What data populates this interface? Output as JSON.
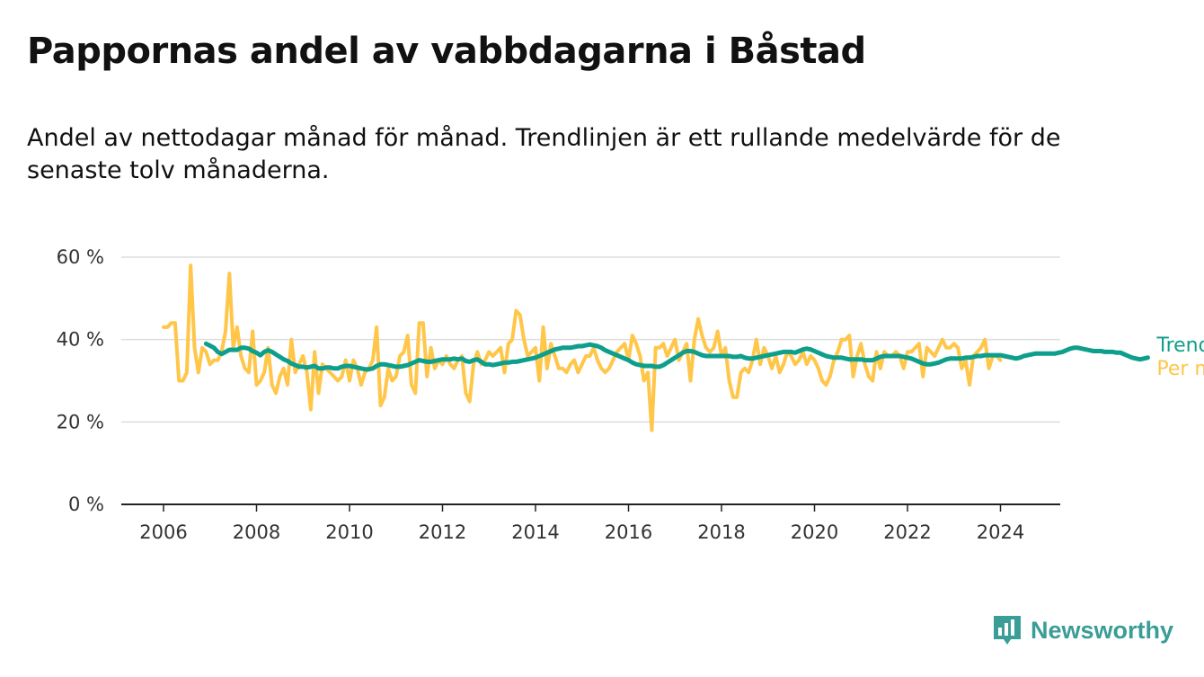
{
  "title": "Pappornas andel av vabbdagarna i Båstad",
  "subtitle": "Andel av nettodagar månad för månad. Trendlinjen är ett rullande medelvärde för de senaste tolv månaderna.",
  "brand": {
    "name": "Newsworthy",
    "icon": "newsworthy-logo-icon"
  },
  "colors": {
    "monthly": "#ffc649",
    "trend": "#0e9f8c",
    "grid": "#dddddd",
    "axis": "#222222"
  },
  "chart_data": {
    "type": "line",
    "title": "Pappornas andel av vabbdagarna i Båstad",
    "xlabel": "",
    "ylabel": "",
    "ylim": [
      0,
      60
    ],
    "yticks": [
      0,
      20,
      40,
      60
    ],
    "ytick_labels": [
      "0 %",
      "20 %",
      "40 %",
      "60 %"
    ],
    "xlim": [
      2006,
      2024.5
    ],
    "xticks": [
      2006,
      2008,
      2010,
      2012,
      2014,
      2016,
      2018,
      2020,
      2022,
      2024
    ],
    "xtick_labels": [
      "2006",
      "2008",
      "2010",
      "2012",
      "2014",
      "2016",
      "2018",
      "2020",
      "2022",
      "2024"
    ],
    "grid": "horizontal",
    "legend": "right",
    "series": [
      {
        "name": "Per månad",
        "color": "#ffc649",
        "x_start": 2006.0,
        "x_step": 0.0833333,
        "values": [
          43,
          43,
          44,
          44,
          30,
          30,
          32,
          58,
          38,
          32,
          38,
          37,
          34,
          35,
          35,
          37,
          42,
          56,
          38,
          43,
          36,
          33,
          32,
          42,
          29,
          30,
          32,
          38,
          29,
          27,
          31,
          33,
          29,
          40,
          32,
          34,
          36,
          32,
          23,
          37,
          27,
          34,
          33,
          32,
          31,
          30,
          31,
          35,
          30,
          35,
          33,
          29,
          32,
          33,
          35,
          43,
          24,
          26,
          33,
          30,
          31,
          36,
          37,
          41,
          29,
          27,
          44,
          44,
          31,
          38,
          33,
          35,
          34,
          36,
          34,
          33,
          35,
          36,
          27,
          25,
          34,
          37,
          34,
          35,
          37,
          36,
          37,
          38,
          32,
          39,
          40,
          47,
          46,
          40,
          36,
          37,
          38,
          30,
          43,
          33,
          39,
          36,
          33,
          33,
          32,
          34,
          35,
          32,
          34,
          36,
          36,
          38,
          35,
          33,
          32,
          33,
          35,
          37,
          38,
          39,
          35,
          41,
          39,
          36,
          30,
          32,
          18,
          38,
          38,
          39,
          36,
          38,
          40,
          35,
          37,
          39,
          30,
          40,
          45,
          41,
          38,
          37,
          38,
          42,
          36,
          38,
          30,
          26,
          26,
          32,
          33,
          32,
          35,
          40,
          34,
          38,
          36,
          33,
          36,
          32,
          34,
          37,
          36,
          34,
          35,
          37,
          34,
          36,
          35,
          33,
          30,
          29,
          31,
          35,
          37,
          40,
          40,
          41,
          31,
          36,
          39,
          34,
          31,
          30,
          37,
          33,
          37,
          36,
          36,
          37,
          36,
          33,
          37,
          37,
          38,
          39,
          31,
          38,
          37,
          36,
          38,
          40,
          38,
          38,
          39,
          38,
          33,
          35,
          29,
          36,
          37,
          38,
          40,
          33,
          36,
          36,
          35
        ]
      },
      {
        "name": "Trend",
        "color": "#0e9f8c",
        "x_start": 2006.9167,
        "x_step": 0.0833333,
        "values": [
          39,
          38.5,
          38,
          37,
          36.5,
          37,
          37.5,
          37.5,
          37.5,
          38,
          38,
          37.8,
          37.2,
          36.8,
          36.2,
          37,
          37.4,
          37,
          36.4,
          35.8,
          35.2,
          34.8,
          34.2,
          33.8,
          33.4,
          33.4,
          33.2,
          33.4,
          33.6,
          33,
          33,
          33.2,
          33.2,
          33,
          33,
          33.4,
          33.6,
          33.6,
          33.4,
          33.2,
          33,
          32.8,
          32.8,
          33,
          33.6,
          34,
          34,
          33.8,
          33.6,
          33.4,
          33.4,
          33.6,
          33.8,
          34.2,
          34.6,
          35,
          34.8,
          34.6,
          34.6,
          34.8,
          35,
          35.2,
          35.2,
          35.2,
          35.4,
          35.2,
          35.4,
          34.8,
          34.6,
          35,
          35.2,
          34.6,
          34,
          34,
          33.8,
          34,
          34.2,
          34.4,
          34.4,
          34.6,
          34.6,
          34.8,
          35,
          35.2,
          35.4,
          35.6,
          36,
          36.4,
          36.8,
          37.2,
          37.6,
          37.8,
          38,
          38,
          38,
          38.2,
          38.4,
          38.4,
          38.6,
          38.8,
          38.6,
          38.4,
          38,
          37.4,
          37,
          36.6,
          36.2,
          35.8,
          35.4,
          35,
          34.4,
          34,
          33.8,
          33.6,
          33.6,
          33.6,
          33.4,
          33.4,
          33.8,
          34.4,
          35,
          35.6,
          36.2,
          36.8,
          37.2,
          37.2,
          37,
          36.6,
          36.2,
          36,
          36,
          36,
          36,
          36,
          36,
          36,
          35.8,
          35.8,
          36,
          35.6,
          35.4,
          35.4,
          35.6,
          35.8,
          36,
          36.2,
          36.4,
          36.6,
          36.8,
          37,
          37,
          37,
          36.8,
          37.2,
          37.6,
          37.8,
          37.6,
          37.2,
          36.8,
          36.4,
          36,
          35.8,
          35.6,
          35.6,
          35.6,
          35.4,
          35.2,
          35.2,
          35.2,
          35.2,
          35,
          35,
          35,
          35.4,
          35.8,
          36,
          36,
          36,
          36,
          36,
          35.8,
          35.6,
          35.4,
          35,
          34.6,
          34.2,
          34,
          34,
          34.2,
          34.4,
          34.8,
          35.2,
          35.4,
          35.4,
          35.4,
          35.4,
          35.6,
          35.6,
          35.8,
          36,
          36,
          36.2,
          36.2,
          36.2,
          36.2,
          36.2,
          36,
          35.8,
          35.6,
          35.4,
          35.6,
          36,
          36.2,
          36.4,
          36.6,
          36.6,
          36.6,
          36.6,
          36.6,
          36.6,
          36.8,
          37,
          37.4,
          37.8,
          38,
          38,
          37.8,
          37.6,
          37.4,
          37.2,
          37.2,
          37.2,
          37,
          37,
          37,
          36.8,
          36.8,
          36.4,
          36,
          35.6,
          35.4,
          35.2,
          35.4,
          35.6
        ]
      }
    ]
  }
}
